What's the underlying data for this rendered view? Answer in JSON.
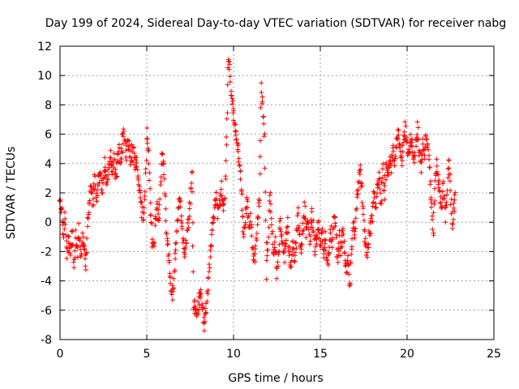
{
  "chart_data": {
    "type": "scatter",
    "title": "Day 199 of 2024, Sidereal Day-to-day VTEC variation (SDTVAR) for receiver nabg",
    "xlabel": "GPS time / hours",
    "ylabel": "SDTVAR / TECUs",
    "xlim": [
      0,
      25
    ],
    "ylim": [
      -8,
      12
    ],
    "x_ticks": [
      0,
      5,
      10,
      15,
      20,
      25
    ],
    "y_ticks": [
      -8,
      -6,
      -4,
      -2,
      0,
      2,
      4,
      6,
      8,
      10,
      12
    ],
    "grid": true,
    "marker": "+",
    "color": "#ff0000",
    "series": [
      {
        "name": "SDTVAR",
        "trace": [
          [
            0.0,
            1.8
          ],
          [
            0.1,
            1.0
          ],
          [
            0.2,
            -1.0
          ],
          [
            0.3,
            0.5
          ],
          [
            0.4,
            -2.5
          ],
          [
            0.5,
            -1.0
          ],
          [
            0.6,
            -2.0
          ],
          [
            0.7,
            -0.5
          ],
          [
            0.8,
            -3.0
          ],
          [
            0.9,
            -1.0
          ],
          [
            1.0,
            -2.0
          ],
          [
            1.1,
            -0.5
          ],
          [
            1.2,
            -2.5
          ],
          [
            1.3,
            -1.0
          ],
          [
            1.4,
            -1.5
          ],
          [
            1.5,
            -3.0
          ],
          [
            1.6,
            0.0
          ],
          [
            1.7,
            1.5
          ],
          [
            1.8,
            2.5
          ],
          [
            1.9,
            1.0
          ],
          [
            2.0,
            3.0
          ],
          [
            2.1,
            1.5
          ],
          [
            2.2,
            2.5
          ],
          [
            2.3,
            3.5
          ],
          [
            2.4,
            2.0
          ],
          [
            2.5,
            3.0
          ],
          [
            2.6,
            4.0
          ],
          [
            2.7,
            2.5
          ],
          [
            2.8,
            3.5
          ],
          [
            2.9,
            5.0
          ],
          [
            3.0,
            3.5
          ],
          [
            3.1,
            4.5
          ],
          [
            3.2,
            3.0
          ],
          [
            3.3,
            4.0
          ],
          [
            3.4,
            5.0
          ],
          [
            3.5,
            4.0
          ],
          [
            3.6,
            5.5
          ],
          [
            3.7,
            6.0
          ],
          [
            3.8,
            4.5
          ],
          [
            3.9,
            5.5
          ],
          [
            4.0,
            5.0
          ],
          [
            4.1,
            4.0
          ],
          [
            4.2,
            5.5
          ],
          [
            4.3,
            3.5
          ],
          [
            4.4,
            4.5
          ],
          [
            4.5,
            3.0
          ],
          [
            4.6,
            2.0
          ],
          [
            4.7,
            1.0
          ],
          [
            4.8,
            0.0
          ],
          [
            4.9,
            2.5
          ],
          [
            5.0,
            6.0
          ],
          [
            5.1,
            4.5
          ],
          [
            5.2,
            1.5
          ],
          [
            5.3,
            -1.0
          ],
          [
            5.4,
            -2.0
          ],
          [
            5.5,
            0.5
          ],
          [
            5.6,
            1.0
          ],
          [
            5.7,
            0.0
          ],
          [
            5.8,
            3.0
          ],
          [
            5.9,
            5.0
          ],
          [
            6.0,
            3.5
          ],
          [
            6.1,
            0.0
          ],
          [
            6.2,
            -1.5
          ],
          [
            6.3,
            -3.0
          ],
          [
            6.4,
            -4.5
          ],
          [
            6.5,
            -5.0
          ],
          [
            6.6,
            -3.0
          ],
          [
            6.7,
            -1.0
          ],
          [
            6.8,
            0.5
          ],
          [
            6.9,
            2.0
          ],
          [
            7.0,
            0.0
          ],
          [
            7.1,
            -1.5
          ],
          [
            7.2,
            -2.5
          ],
          [
            7.3,
            -1.0
          ],
          [
            7.4,
            0.0
          ],
          [
            7.5,
            1.5
          ],
          [
            7.6,
            3.5
          ],
          [
            7.7,
            -5.5
          ],
          [
            7.8,
            -6.0
          ],
          [
            7.9,
            -6.5
          ],
          [
            8.0,
            -5.5
          ],
          [
            8.1,
            -4.5
          ],
          [
            8.2,
            -6.0
          ],
          [
            8.3,
            -7.0
          ],
          [
            8.4,
            -6.0
          ],
          [
            8.5,
            -4.5
          ],
          [
            8.6,
            -3.0
          ],
          [
            8.7,
            -1.5
          ],
          [
            8.8,
            0.0
          ],
          [
            8.9,
            1.0
          ],
          [
            9.0,
            2.0
          ],
          [
            9.1,
            0.5
          ],
          [
            9.2,
            1.5
          ],
          [
            9.3,
            2.5
          ],
          [
            9.4,
            1.0
          ],
          [
            9.5,
            2.0
          ],
          [
            9.6,
            5.5
          ],
          [
            9.7,
            11.5
          ],
          [
            9.8,
            10.0
          ],
          [
            9.9,
            8.5
          ],
          [
            10.0,
            7.5
          ],
          [
            10.1,
            6.5
          ],
          [
            10.2,
            5.5
          ],
          [
            10.3,
            4.5
          ],
          [
            10.4,
            3.5
          ],
          [
            10.5,
            1.0
          ],
          [
            10.6,
            -1.0
          ],
          [
            10.7,
            0.5
          ],
          [
            10.8,
            1.5
          ],
          [
            10.9,
            -0.5
          ],
          [
            11.0,
            0.5
          ],
          [
            11.1,
            -2.0
          ],
          [
            11.2,
            -3.0
          ],
          [
            11.3,
            -1.5
          ],
          [
            11.4,
            0.5
          ],
          [
            11.5,
            1.5
          ],
          [
            11.6,
            9.0
          ],
          [
            11.7,
            7.5
          ],
          [
            11.8,
            6.0
          ],
          [
            11.9,
            -3.5
          ],
          [
            12.0,
            -1.5
          ],
          [
            12.1,
            2.0
          ],
          [
            12.2,
            0.0
          ],
          [
            12.3,
            -2.0
          ],
          [
            12.4,
            -1.0
          ],
          [
            12.5,
            -3.5
          ],
          [
            12.6,
            -2.0
          ],
          [
            12.7,
            0.0
          ],
          [
            12.8,
            -1.0
          ],
          [
            12.9,
            -2.5
          ],
          [
            13.0,
            -1.5
          ],
          [
            13.1,
            0.0
          ],
          [
            13.2,
            -2.0
          ],
          [
            13.3,
            -3.0
          ],
          [
            13.4,
            -1.0
          ],
          [
            13.5,
            -2.5
          ],
          [
            13.6,
            -1.5
          ],
          [
            13.7,
            0.5
          ],
          [
            13.8,
            -1.0
          ],
          [
            13.9,
            -2.0
          ],
          [
            14.0,
            -0.5
          ],
          [
            14.1,
            1.0
          ],
          [
            14.2,
            -1.0
          ],
          [
            14.3,
            0.0
          ],
          [
            14.4,
            -1.5
          ],
          [
            14.5,
            0.5
          ],
          [
            14.6,
            -0.5
          ],
          [
            14.7,
            -2.0
          ],
          [
            14.8,
            -1.0
          ],
          [
            14.9,
            0.0
          ],
          [
            15.0,
            -1.5
          ],
          [
            15.1,
            -0.5
          ],
          [
            15.2,
            -2.0
          ],
          [
            15.3,
            -1.0
          ],
          [
            15.4,
            -3.0
          ],
          [
            15.5,
            -2.0
          ],
          [
            15.6,
            -0.5
          ],
          [
            15.7,
            -1.5
          ],
          [
            15.8,
            0.5
          ],
          [
            15.9,
            -1.0
          ],
          [
            16.0,
            -2.5
          ],
          [
            16.1,
            -1.0
          ],
          [
            16.2,
            -2.0
          ],
          [
            16.3,
            -0.5
          ],
          [
            16.4,
            -2.5
          ],
          [
            16.5,
            -3.5
          ],
          [
            16.6,
            -2.0
          ],
          [
            16.7,
            -4.5
          ],
          [
            16.8,
            -1.5
          ],
          [
            16.9,
            0.0
          ],
          [
            17.0,
            -1.0
          ],
          [
            17.1,
            1.5
          ],
          [
            17.2,
            3.0
          ],
          [
            17.3,
            3.5
          ],
          [
            17.4,
            2.0
          ],
          [
            17.5,
            0.0
          ],
          [
            17.6,
            -1.5
          ],
          [
            17.7,
            -2.5
          ],
          [
            17.8,
            -1.0
          ],
          [
            17.9,
            -0.5
          ],
          [
            18.0,
            0.5
          ],
          [
            18.1,
            2.0
          ],
          [
            18.2,
            1.0
          ],
          [
            18.3,
            2.5
          ],
          [
            18.4,
            3.0
          ],
          [
            18.5,
            1.5
          ],
          [
            18.6,
            3.5
          ],
          [
            18.7,
            2.0
          ],
          [
            18.8,
            4.0
          ],
          [
            18.9,
            3.0
          ],
          [
            19.0,
            4.5
          ],
          [
            19.1,
            3.5
          ],
          [
            19.2,
            5.0
          ],
          [
            19.3,
            4.0
          ],
          [
            19.4,
            5.5
          ],
          [
            19.5,
            6.0
          ],
          [
            19.6,
            5.0
          ],
          [
            19.7,
            4.0
          ],
          [
            19.8,
            5.5
          ],
          [
            19.9,
            6.5
          ],
          [
            20.0,
            5.0
          ],
          [
            20.1,
            4.5
          ],
          [
            20.2,
            6.0
          ],
          [
            20.3,
            5.0
          ],
          [
            20.4,
            4.0
          ],
          [
            20.5,
            5.5
          ],
          [
            20.6,
            6.5
          ],
          [
            20.7,
            5.0
          ],
          [
            20.8,
            3.5
          ],
          [
            20.9,
            5.5
          ],
          [
            21.0,
            4.5
          ],
          [
            21.1,
            6.0
          ],
          [
            21.2,
            5.0
          ],
          [
            21.3,
            3.5
          ],
          [
            21.4,
            1.0
          ],
          [
            21.5,
            -1.0
          ],
          [
            21.6,
            2.0
          ],
          [
            21.7,
            4.0
          ],
          [
            21.8,
            3.0
          ],
          [
            21.9,
            2.0
          ],
          [
            22.0,
            1.0
          ],
          [
            22.1,
            2.5
          ],
          [
            22.2,
            0.5
          ],
          [
            22.3,
            1.5
          ],
          [
            22.4,
            4.5
          ],
          [
            22.5,
            2.0
          ],
          [
            22.6,
            0.0
          ],
          [
            22.7,
            1.0
          ],
          [
            22.8,
            2.0
          ]
        ]
      }
    ]
  }
}
